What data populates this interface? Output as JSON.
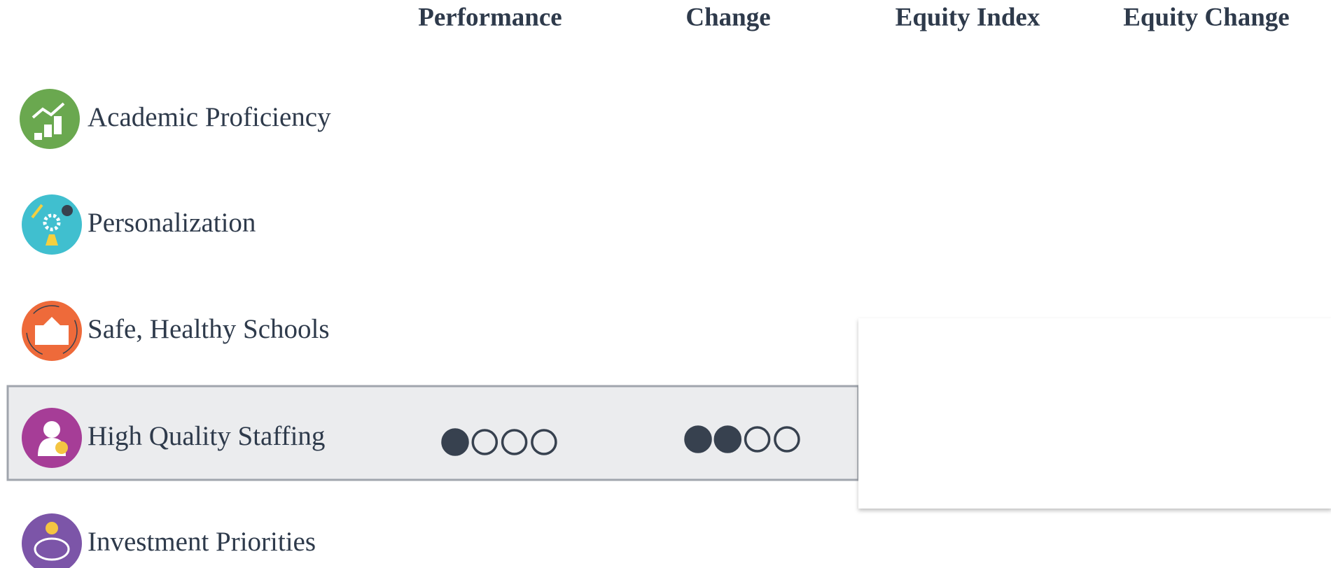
{
  "headers": [
    "Performance",
    "Change",
    "Equity Index",
    "Equity Change"
  ],
  "rating_max": 4,
  "rows": [
    {
      "label": "Academic Proficiency",
      "color": "#6aa84f"
    },
    {
      "label": "Personalization",
      "color": "#40bfcf"
    },
    {
      "label": "Safe, Healthy Schools",
      "color": "#ee6a3a"
    },
    {
      "label": "High Quality Staffing",
      "color": "#a63d97",
      "highlighted": true,
      "performance": 1,
      "change": 2
    },
    {
      "label": "Investment Priorities",
      "color": "#7c55a8"
    }
  ]
}
